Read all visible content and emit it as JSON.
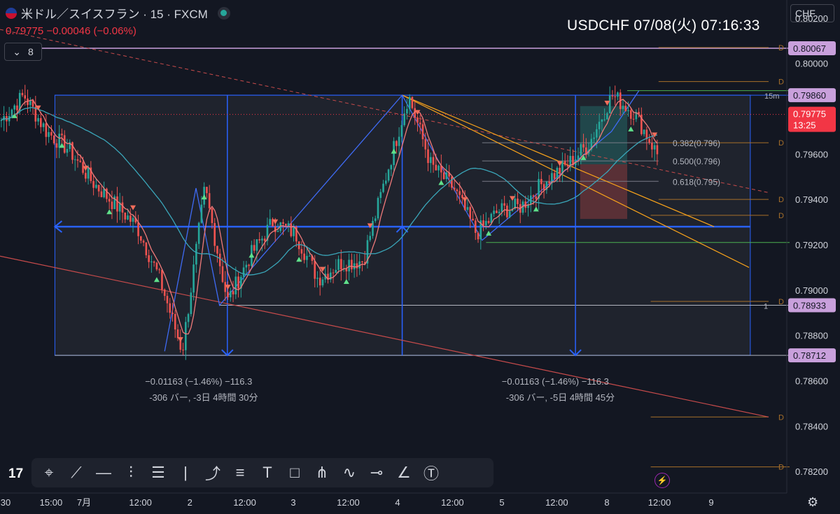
{
  "header": {
    "symbol": "米ドル／スイスフラン · 15 · FXCM",
    "price_line": "0.79775  −0.00046 (−0.06%)",
    "indicator_count": "8",
    "big_label": "USDCHF   07/08(火)   07:16:33",
    "currency": "CHF"
  },
  "toolbar": {
    "tools": [
      "crosshair-icon",
      "trend-line-icon",
      "horizontal-line-icon",
      "parallel-channel-icon",
      "fib-retracement-icon",
      "vertical-line-icon",
      "path-icon",
      "long-position-icon",
      "text-icon",
      "rectangle-icon",
      "pitchfork-icon",
      "pattern-icon",
      "ray-icon",
      "brush-icon",
      "text-anchor-icon"
    ]
  },
  "colors": {
    "background": "#131722",
    "up": "#26a69a",
    "down": "#ef5350",
    "blue_tool": "#2962ff",
    "orange": "#f7a21b",
    "violet_label": "#c9a0dc"
  },
  "chart_data": {
    "type": "candlestick",
    "symbol": "USDCHF",
    "interval": "15",
    "ylim": [
      0.7812,
      0.8028
    ],
    "y_ticks": [
      0.802,
      0.8,
      0.796,
      0.794,
      0.792,
      0.79,
      0.788,
      0.786,
      0.784,
      0.782
    ],
    "x_ticks": [
      {
        "label": "30",
        "pos": 0.0
      },
      {
        "label": "15:00",
        "pos": 0.058
      },
      {
        "label": "7月",
        "pos": 0.1
      },
      {
        "label": "12:00",
        "pos": 0.172
      },
      {
        "label": "2",
        "pos": 0.235
      },
      {
        "label": "12:00",
        "pos": 0.305
      },
      {
        "label": "3",
        "pos": 0.367
      },
      {
        "label": "12:00",
        "pos": 0.437
      },
      {
        "label": "4",
        "pos": 0.5
      },
      {
        "label": "12:00",
        "pos": 0.57
      },
      {
        "label": "5",
        "pos": 0.633
      },
      {
        "label": "12:00",
        "pos": 0.703
      },
      {
        "label": "8",
        "pos": 0.767
      },
      {
        "label": "12:00",
        "pos": 0.834
      },
      {
        "label": "9",
        "pos": 0.9
      }
    ],
    "price_labels": [
      {
        "value": 0.80067,
        "text": "0.80067"
      },
      {
        "value": 0.7986,
        "text": "0.79860"
      },
      {
        "value": 0.78933,
        "text": "0.78933"
      },
      {
        "value": 0.78712,
        "text": "0.78712"
      }
    ],
    "current_price": {
      "value": 0.79775,
      "text": "0.79775",
      "countdown": "13:25"
    },
    "path_prices": [
      0.7975,
      0.7986,
      0.797,
      0.7962,
      0.7948,
      0.7938,
      0.7928,
      0.7905,
      0.7873,
      0.7945,
      0.7895,
      0.7915,
      0.793,
      0.7925,
      0.7905,
      0.7912,
      0.7913,
      0.795,
      0.7986,
      0.7955,
      0.7945,
      0.7925,
      0.7935,
      0.7937,
      0.7948,
      0.7955,
      0.7965,
      0.7986,
      0.7978,
      0.796
    ],
    "fib_labels": [
      {
        "text": "0.382(0.796)",
        "value": 0.7965
      },
      {
        "text": "0.500(0.796)",
        "value": 0.7957
      },
      {
        "text": "0.618(0.795)",
        "value": 0.7948
      }
    ],
    "measure_labels": [
      {
        "line1": "−0.01163 (−1.46%) −116.3",
        "line2": "-306 バー, -3日 4時間 30分"
      },
      {
        "line1": "−0.01163 (−1.46%) −116.3",
        "line2": "-306 バー, -5日 4時間 45分"
      }
    ],
    "tag_15m": "15m",
    "tag_1": "1"
  }
}
